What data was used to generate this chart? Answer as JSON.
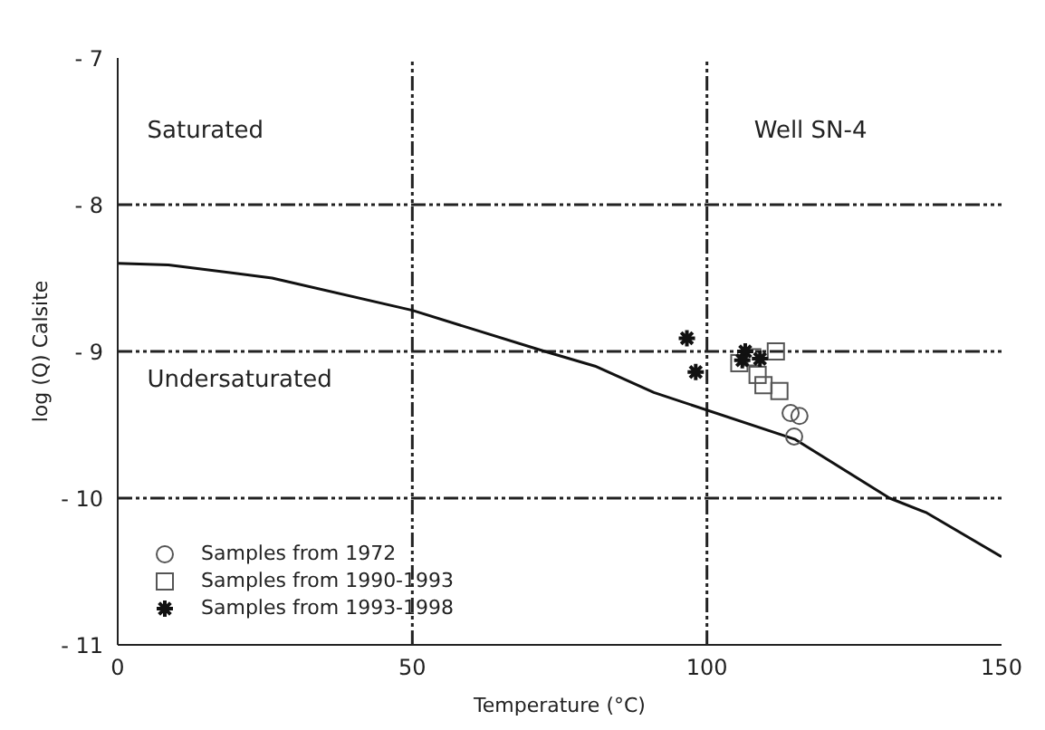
{
  "chart_data": {
    "type": "scatter",
    "xlabel": "Temperature (°C)",
    "ylabel": "log (Q) Calsite",
    "annotations": [
      "Saturated",
      "Well SN-4",
      "Undersaturated"
    ],
    "xlim": [
      0,
      150
    ],
    "xticks": [
      0,
      50,
      100,
      150
    ],
    "ylim": [
      -11,
      -7
    ],
    "yticks": [
      {
        "value": -11,
        "label": "- 11"
      },
      {
        "value": -10,
        "label": "- 10"
      },
      {
        "value": -9,
        "label": "- 9"
      },
      {
        "value": -8,
        "label": "- 8"
      },
      {
        "value": -7,
        "label": "- 7"
      }
    ],
    "grid": true,
    "legend": "bottom left",
    "series": [
      {
        "name": "Samples from 1972",
        "color": "#555555",
        "marker": "circle",
        "x": [
          114.2,
          115.7,
          114.8
        ],
        "values": [
          -9.42,
          -9.44,
          -9.58
        ]
      },
      {
        "name": "Samples from 1990-1993",
        "color": "#555555",
        "marker": "square",
        "x": [
          111.7,
          105.5,
          107.7,
          108.6,
          109.6,
          112.3
        ],
        "values": [
          -9.0,
          -9.08,
          -9.04,
          -9.16,
          -9.23,
          -9.27
        ]
      },
      {
        "name": "Samples from 1993-1998",
        "color": "#111111",
        "marker": "cross",
        "x": [
          96.6,
          98.1,
          106.5,
          109,
          106
        ],
        "values": [
          -8.91,
          -9.14,
          -9.0,
          -9.05,
          -9.06
        ]
      },
      {
        "type": "line",
        "color": "#111111",
        "marker": "none",
        "line_style": "solid",
        "x": [
          0,
          8.6,
          26.2,
          50,
          72.5,
          81,
          91,
          115,
          131,
          137.3,
          150
        ],
        "values": [
          -8.4,
          -8.41,
          -8.5,
          -8.72,
          -9.0,
          -9.1,
          -9.28,
          -9.6,
          -10.0,
          -10.1,
          -10.4
        ]
      }
    ]
  }
}
